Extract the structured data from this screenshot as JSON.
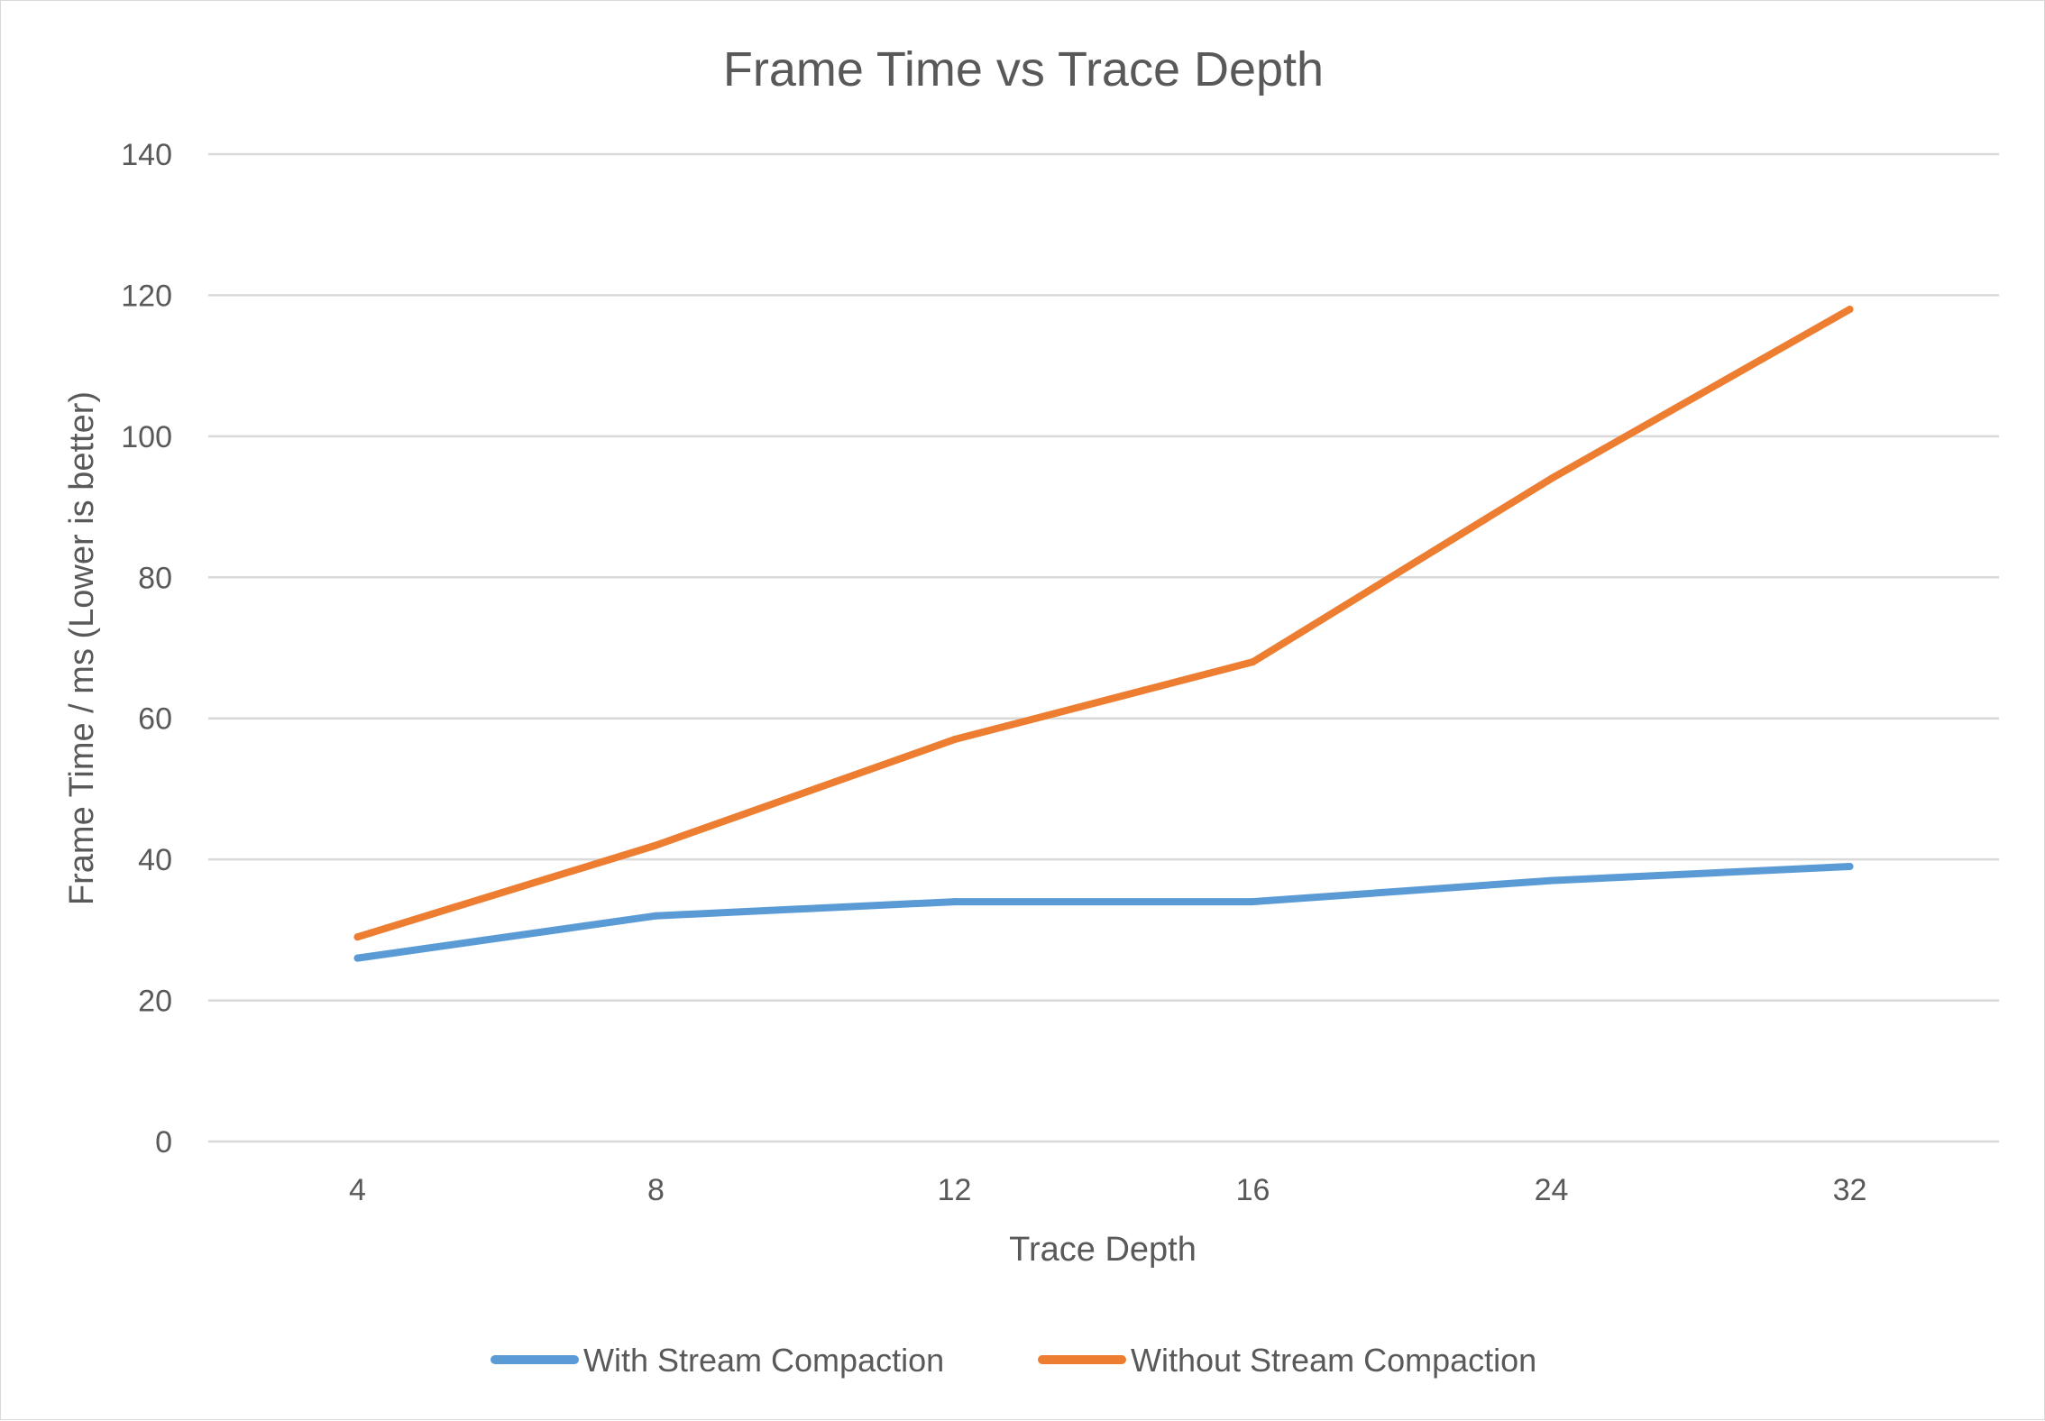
{
  "chart_data": {
    "type": "line",
    "title": "Frame Time vs Trace Depth",
    "xlabel": "Trace Depth",
    "ylabel": "Frame Time / ms (Lower is better)",
    "categories": [
      "4",
      "8",
      "12",
      "16",
      "24",
      "32"
    ],
    "ylim": [
      0,
      140
    ],
    "yticks": [
      0,
      20,
      40,
      60,
      80,
      100,
      120,
      140
    ],
    "grid": true,
    "legend_position": "bottom",
    "series": [
      {
        "name": "With Stream Compaction",
        "color": "#5b9bd5",
        "values": [
          26,
          32,
          34,
          34,
          37,
          39
        ]
      },
      {
        "name": "Without Stream Compaction",
        "color": "#ed7d31",
        "values": [
          29,
          42,
          57,
          68,
          94,
          118
        ]
      }
    ]
  }
}
